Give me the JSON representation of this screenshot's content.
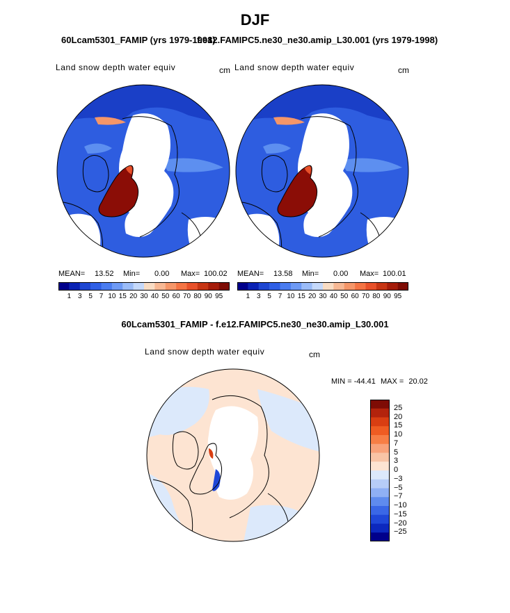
{
  "figure": {
    "season": "DJF",
    "case1_title": "60Lcam5301_FAMIP (yrs 1979-1998)",
    "case2_title": "f.e12.FAMIPC5.ne30_ne30.amip_L30.001 (yrs 1979-1998)",
    "diff_title": "60Lcam5301_FAMIP - f.e12.FAMIPC5.ne30_ne30.amip_L30.001"
  },
  "panels": [
    {
      "variable": "Land snow depth water equiv",
      "units": "cm",
      "mean_label": "MEAN=",
      "mean": "13.52",
      "min_label": "Min=",
      "min": "0.00",
      "max_label": "Max=",
      "max": "100.02"
    },
    {
      "variable": "Land snow depth water equiv",
      "units": "cm",
      "mean_label": "MEAN=",
      "mean": "13.58",
      "min_label": "Min=",
      "min": "0.00",
      "max_label": "Max=",
      "max": "100.01"
    }
  ],
  "colorbar": {
    "labels": [
      "1",
      "3",
      "5",
      "7",
      "10",
      "15",
      "20",
      "30",
      "40",
      "50",
      "60",
      "70",
      "80",
      "90",
      "95"
    ],
    "colors": [
      "#00008b",
      "#0a22b4",
      "#1e46d2",
      "#2f5fe6",
      "#4a7cf0",
      "#6e9af5",
      "#9bbcf8",
      "#c5d9fb",
      "#f8dcc4",
      "#f7b894",
      "#f59669",
      "#f47444",
      "#e8512a",
      "#c73514",
      "#a51c0a",
      "#7e0c05"
    ]
  },
  "diff_panel": {
    "variable": "Land snow depth water equiv",
    "units": "cm",
    "min_label": "MIN =",
    "min": "-44.41",
    "max_label": "MAX =",
    "max": "20.02",
    "labels": [
      "25",
      "20",
      "15",
      "10",
      "7",
      "5",
      "3",
      "0",
      "−3",
      "−5",
      "−7",
      "−10",
      "−15",
      "−20",
      "−25"
    ],
    "colors": [
      "#7e0c05",
      "#b3230c",
      "#d93e12",
      "#ef5c22",
      "#f77e45",
      "#f8a27a",
      "#f8c4a6",
      "#fde4d2",
      "#dce9fb",
      "#b7cdf8",
      "#8fb0f5",
      "#5f8bee",
      "#3a67e6",
      "#1f47d8",
      "#0c28be",
      "#00008b"
    ]
  }
}
